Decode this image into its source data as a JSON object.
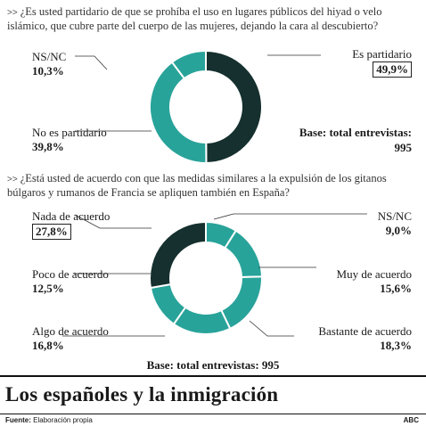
{
  "chart_data": [
    {
      "type": "pie",
      "title": "¿Es usted partidario de que se prohíba el uso en lugares públicos del hiyad o velo islámico, que cubre parte del cuerpo de las mujeres, dejando la cara al descubierto?",
      "categories": [
        "Es partidario",
        "No es partidario",
        "NS/NC"
      ],
      "values": [
        49.9,
        39.8,
        10.3
      ],
      "value_labels": [
        "49,9",
        "39,8",
        "10,3"
      ],
      "base": "Base: total entrevistas:",
      "base_n": "995"
    },
    {
      "type": "pie",
      "title": "¿Está usted de acuerdo con que las medidas similares a la expulsión de los gitanos búlgaros y rumanos de Francia se apliquen también en España?",
      "categories": [
        "NS/NC",
        "Muy de acuerdo",
        "Bastante de acuerdo",
        "Algo de acuerdo",
        "Poco de acuerdo",
        "Nada de acuerdo"
      ],
      "values": [
        9.0,
        15.6,
        18.3,
        16.8,
        12.5,
        27.8
      ],
      "value_labels": [
        "9,0",
        "15,6",
        "18,3",
        "16,8",
        "12,5",
        "27,8"
      ],
      "base": "Base: total entrevistas: 995"
    }
  ],
  "colors": {
    "dark": "#15302e",
    "teal": "#28a39a",
    "text": "#1a1a1a"
  },
  "page": {
    "arrow": ">>",
    "title": "Los españoles y la inmigración",
    "source_label": "Fuente:",
    "source_value": "Elaboración propia",
    "credit": "ABC"
  }
}
